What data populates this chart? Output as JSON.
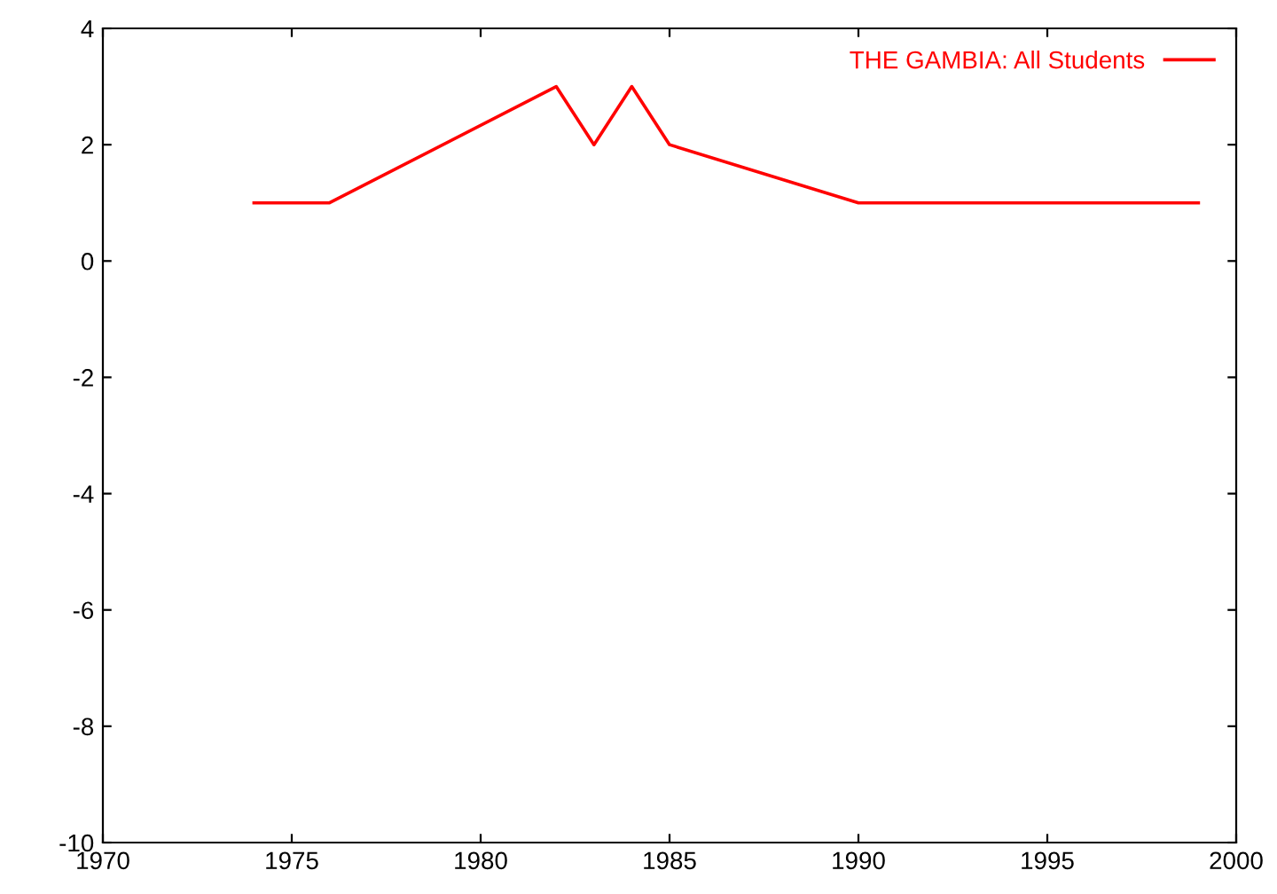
{
  "chart_data": {
    "type": "line",
    "x": [
      1974,
      1976,
      1982,
      1983,
      1984,
      1985,
      1990,
      1999
    ],
    "series": [
      {
        "name": "THE GAMBIA: All Students",
        "color": "#ff0000",
        "values": [
          1,
          1,
          3,
          2,
          3,
          2,
          1,
          1
        ]
      }
    ],
    "xlim": [
      1970,
      2000
    ],
    "xticks": [
      1970,
      1975,
      1980,
      1985,
      1990,
      1995,
      2000
    ],
    "ylim": [
      -10,
      4
    ],
    "yticks": [
      -10,
      -8,
      -6,
      -4,
      -2,
      0,
      2,
      4
    ],
    "grid": false,
    "legend": "top right",
    "marker": "none",
    "line_style": "solid"
  }
}
